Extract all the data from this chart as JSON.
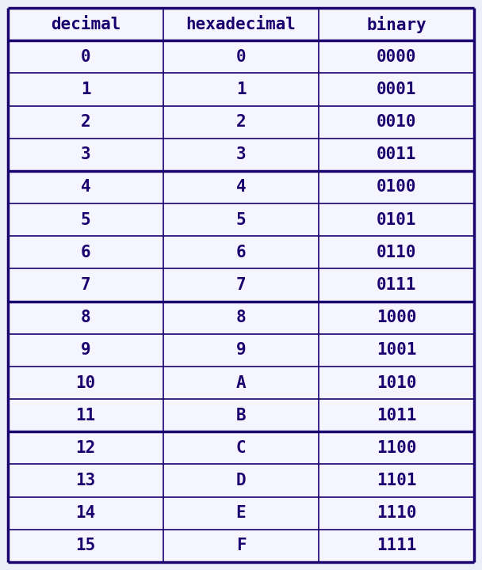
{
  "headers": [
    "decimal",
    "hexadecimal",
    "binary"
  ],
  "rows": [
    [
      "0",
      "0",
      "0000"
    ],
    [
      "1",
      "1",
      "0001"
    ],
    [
      "2",
      "2",
      "0010"
    ],
    [
      "3",
      "3",
      "0011"
    ],
    [
      "4",
      "4",
      "0100"
    ],
    [
      "5",
      "5",
      "0101"
    ],
    [
      "6",
      "6",
      "0110"
    ],
    [
      "7",
      "7",
      "0111"
    ],
    [
      "8",
      "8",
      "1000"
    ],
    [
      "9",
      "9",
      "1001"
    ],
    [
      "10",
      "A",
      "1010"
    ],
    [
      "11",
      "B",
      "1011"
    ],
    [
      "12",
      "C",
      "1100"
    ],
    [
      "13",
      "D",
      "1101"
    ],
    [
      "14",
      "E",
      "1110"
    ],
    [
      "15",
      "F",
      "1111"
    ]
  ],
  "text_color": "#1a006e",
  "border_color": "#1a006e",
  "bg_color": "#eeeef8",
  "header_font_size": 15,
  "cell_font_size": 15,
  "outer_border_lw": 2.5,
  "inner_border_lw": 1.2,
  "group_border_lw": 2.5,
  "font_family": "monospace"
}
